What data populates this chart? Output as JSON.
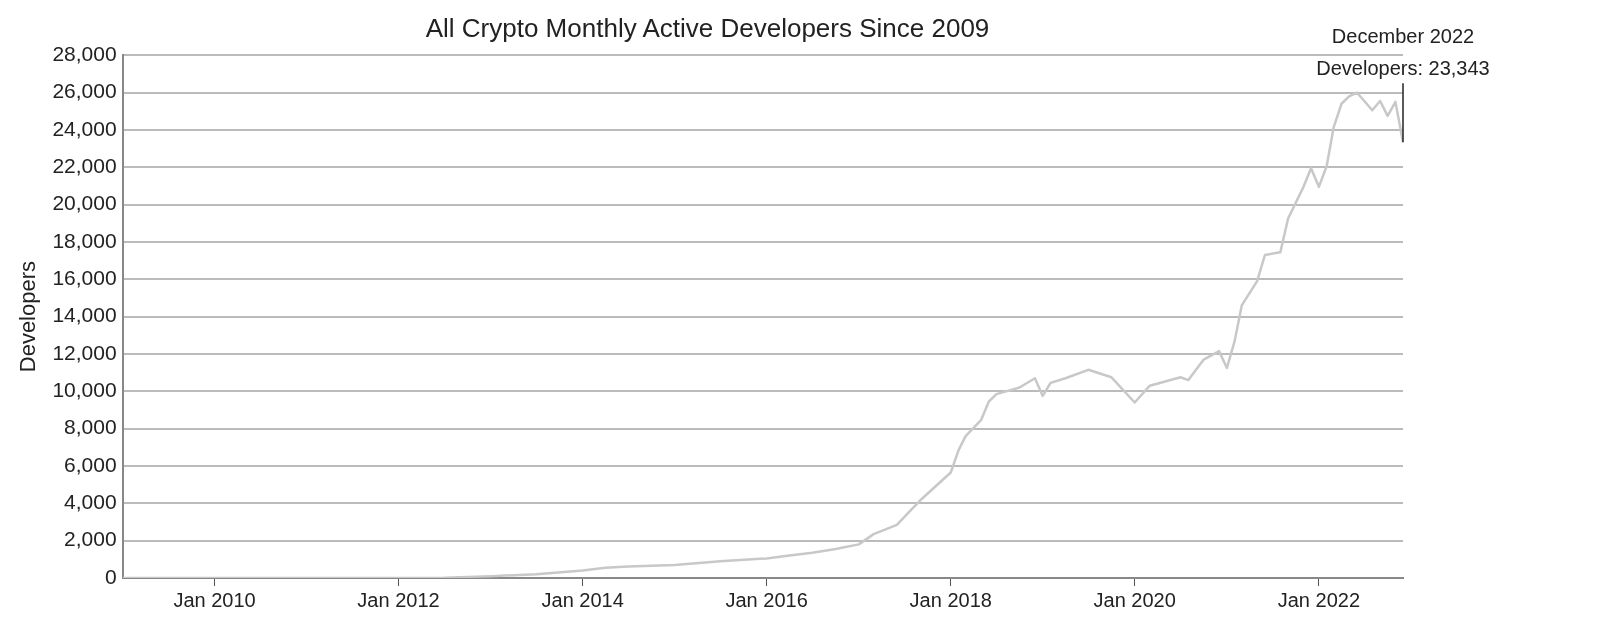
{
  "chart_data": {
    "type": "line",
    "title": "All Crypto Monthly Active Developers Since 2009",
    "ylabel": "Developers",
    "x": [
      "2009-01",
      "2011-01",
      "2012-01",
      "2012-07",
      "2013-01",
      "2013-07",
      "2014-01",
      "2014-04",
      "2014-07",
      "2015-01",
      "2015-07",
      "2016-01",
      "2016-04",
      "2016-07",
      "2016-10",
      "2017-01",
      "2017-03",
      "2017-06",
      "2017-09",
      "2018-01",
      "2018-02",
      "2018-03",
      "2018-05",
      "2018-06",
      "2018-07",
      "2018-10",
      "2018-12",
      "2019-01",
      "2019-02",
      "2019-04",
      "2019-07",
      "2019-10",
      "2020-01",
      "2020-03",
      "2020-07",
      "2020-08",
      "2020-10",
      "2020-12",
      "2021-01",
      "2021-02",
      "2021-03",
      "2021-05",
      "2021-06",
      "2021-08",
      "2021-09",
      "2021-11",
      "2021-12",
      "2022-01",
      "2022-02",
      "2022-03",
      "2022-04",
      "2022-05",
      "2022-06",
      "2022-08",
      "2022-09",
      "2022-10",
      "2022-11",
      "2022-12"
    ],
    "series": [
      {
        "color": "#c8c8c8",
        "values": [
          0,
          0,
          0,
          20,
          100,
          200,
          400,
          550,
          620,
          700,
          900,
          1050,
          1200,
          1350,
          1550,
          1800,
          2350,
          2850,
          4150,
          5650,
          6850,
          7600,
          8450,
          9450,
          9850,
          10200,
          10700,
          9750,
          10450,
          10700,
          11150,
          10750,
          9400,
          10300,
          10750,
          10600,
          11700,
          12150,
          11250,
          12700,
          14600,
          15900,
          17300,
          17450,
          19250,
          20950,
          21950,
          20950,
          22050,
          24150,
          25400,
          25800,
          26000,
          25050,
          25550,
          24750,
          25500,
          23343
        ]
      }
    ],
    "xlim": [
      "2009-01",
      "2022-12"
    ],
    "xticks": [
      {
        "value": "2010-01",
        "label": "Jan 2010"
      },
      {
        "value": "2012-01",
        "label": "Jan 2012"
      },
      {
        "value": "2014-01",
        "label": "Jan 2014"
      },
      {
        "value": "2016-01",
        "label": "Jan 2016"
      },
      {
        "value": "2018-01",
        "label": "Jan 2018"
      },
      {
        "value": "2020-01",
        "label": "Jan 2020"
      },
      {
        "value": "2022-01",
        "label": "Jan 2022"
      }
    ],
    "ylim": [
      0,
      28000
    ],
    "yticks": [
      0,
      {
        "value": 2000,
        "label": "2,000"
      },
      {
        "value": 4000,
        "label": "4,000"
      },
      {
        "value": 6000,
        "label": "6,000"
      },
      {
        "value": 8000,
        "label": "8,000"
      },
      {
        "value": 10000,
        "label": "10,000"
      },
      {
        "value": 12000,
        "label": "12,000"
      },
      {
        "value": 14000,
        "label": "14,000"
      },
      {
        "value": 16000,
        "label": "16,000"
      },
      {
        "value": 18000,
        "label": "18,000"
      },
      {
        "value": 20000,
        "label": "20,000"
      },
      {
        "value": 22000,
        "label": "22,000"
      },
      {
        "value": 24000,
        "label": "24,000"
      },
      {
        "value": 26000,
        "label": "26,000"
      },
      {
        "value": 28000,
        "label": "28,000"
      }
    ],
    "grid": "y",
    "marker": "none",
    "line_style": "solid",
    "annotations": [
      {
        "text": "December 2022\nDevelopers: 23,343",
        "x": "2022-12",
        "y": 23343
      }
    ]
  }
}
